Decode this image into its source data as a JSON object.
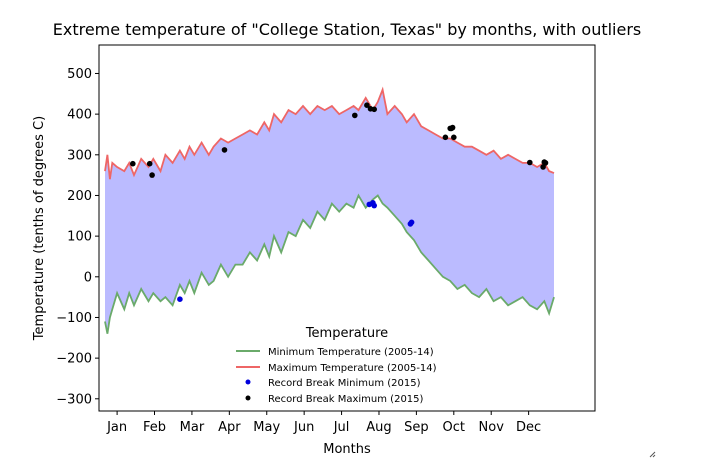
{
  "chart_data": {
    "type": "line",
    "title": "Extreme temperature of \"College Station, Texas\" by months, with outliers",
    "xlabel": "Months",
    "ylabel": "Temperature (tenths of degrees C)",
    "ylim": [
      -330,
      570
    ],
    "yticks": [
      -300,
      -200,
      -100,
      0,
      100,
      200,
      300,
      400,
      500
    ],
    "xlim": [
      -15,
      396
    ],
    "xticks": [
      {
        "label": "Jan",
        "day": 0
      },
      {
        "label": "Feb",
        "day": 31
      },
      {
        "label": "Mar",
        "day": 62
      },
      {
        "label": "Apr",
        "day": 93
      },
      {
        "label": "May",
        "day": 124
      },
      {
        "label": "Jun",
        "day": 155
      },
      {
        "label": "Jul",
        "day": 186
      },
      {
        "label": "Aug",
        "day": 217
      },
      {
        "label": "Sep",
        "day": 248
      },
      {
        "label": "Oct",
        "day": 279
      },
      {
        "label": "Nov",
        "day": 310
      },
      {
        "label": "Dec",
        "day": 341
      }
    ],
    "grid": false,
    "legend": {
      "title": "Temperature",
      "placement": "lower-center"
    },
    "fill_between": {
      "color": "#bbbbff"
    },
    "series": [
      {
        "name": "Minimum Temperature (2005-14)",
        "kind": "line",
        "color": "#6aaa6a",
        "x": [
          -10,
          -8,
          -6,
          -4,
          0,
          6,
          10,
          14,
          20,
          26,
          30,
          36,
          40,
          46,
          52,
          56,
          60,
          64,
          70,
          76,
          80,
          86,
          92,
          98,
          104,
          110,
          116,
          122,
          126,
          130,
          136,
          142,
          148,
          154,
          160,
          166,
          172,
          178,
          184,
          190,
          196,
          200,
          206,
          212,
          216,
          220,
          224,
          230,
          236,
          240,
          246,
          252,
          258,
          264,
          270,
          276,
          282,
          288,
          294,
          300,
          306,
          312,
          318,
          324,
          330,
          336,
          342,
          348,
          354,
          358,
          362
        ],
        "y": [
          -110,
          -140,
          -100,
          -80,
          -40,
          -80,
          -40,
          -70,
          -30,
          -60,
          -40,
          -60,
          -50,
          -70,
          -20,
          -40,
          -10,
          -40,
          10,
          -20,
          -10,
          30,
          0,
          30,
          30,
          60,
          40,
          80,
          50,
          100,
          60,
          110,
          100,
          140,
          120,
          160,
          140,
          180,
          160,
          180,
          170,
          200,
          170,
          190,
          200,
          180,
          170,
          150,
          130,
          110,
          90,
          60,
          40,
          20,
          0,
          -10,
          -30,
          -20,
          -40,
          -50,
          -30,
          -60,
          -50,
          -70,
          -60,
          -50,
          -70,
          -80,
          -60,
          -90,
          -50
        ]
      },
      {
        "name": "Maximum Temperature (2005-14)",
        "kind": "line",
        "color": "#ee6666",
        "x": [
          -10,
          -8,
          -6,
          -4,
          0,
          6,
          10,
          14,
          20,
          26,
          30,
          36,
          40,
          46,
          52,
          56,
          60,
          64,
          70,
          76,
          80,
          86,
          92,
          98,
          104,
          110,
          116,
          122,
          126,
          130,
          136,
          142,
          148,
          154,
          160,
          166,
          172,
          178,
          184,
          190,
          196,
          200,
          206,
          212,
          216,
          220,
          224,
          230,
          236,
          240,
          246,
          252,
          258,
          264,
          270,
          276,
          282,
          288,
          294,
          300,
          306,
          312,
          318,
          324,
          330,
          336,
          342,
          348,
          354,
          358,
          362
        ],
        "y": [
          260,
          300,
          240,
          280,
          270,
          260,
          280,
          250,
          290,
          270,
          290,
          260,
          300,
          280,
          310,
          290,
          320,
          300,
          330,
          300,
          320,
          340,
          330,
          340,
          350,
          360,
          350,
          380,
          360,
          400,
          380,
          410,
          400,
          420,
          400,
          420,
          410,
          420,
          400,
          410,
          420,
          410,
          440,
          410,
          430,
          460,
          400,
          420,
          400,
          380,
          400,
          370,
          360,
          350,
          340,
          340,
          330,
          320,
          320,
          310,
          300,
          310,
          290,
          300,
          290,
          280,
          280,
          270,
          280,
          260,
          255
        ]
      },
      {
        "name": "Record Break Minimum (2015)",
        "kind": "scatter",
        "color": "#0000dd",
        "x": [
          52,
          209,
          212,
          213,
          243,
          244
        ],
        "y": [
          -55,
          178,
          182,
          175,
          130,
          134
        ]
      },
      {
        "name": "Record Break Maximum (2015)",
        "kind": "scatter",
        "color": "#000000",
        "x": [
          13,
          27,
          29,
          89,
          197,
          207,
          210,
          213,
          272,
          276,
          277,
          278,
          279,
          342,
          353,
          354,
          355
        ],
        "y": [
          278,
          278,
          250,
          312,
          397,
          422,
          413,
          412,
          343,
          365,
          365,
          367,
          343,
          281,
          270,
          282,
          280
        ]
      }
    ]
  }
}
